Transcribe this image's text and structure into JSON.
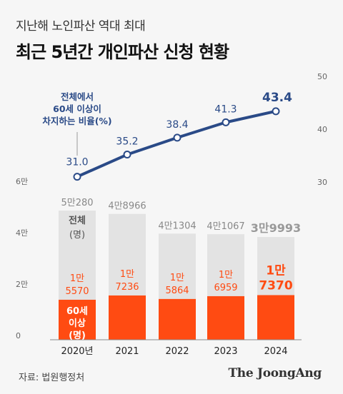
{
  "header": {
    "subtitle": "지난해 노인파산 역대 최대",
    "title": "최근 5년간 개인파산 신청 현황"
  },
  "source": "자료: 법원행정처",
  "brand": "The JoongAng",
  "line_annotation": [
    "전체에서",
    "60세 이상이",
    "차지하는 비율(%)"
  ],
  "total_box_label": [
    "전체",
    "(명)"
  ],
  "senior_box_label": [
    "60세",
    "이상",
    "(명)"
  ],
  "colors": {
    "total_bar": "#e3e3e3",
    "senior_bar": "#ff4b12",
    "line": "#2a4a87",
    "background": "#f6f6f6"
  },
  "chart_data": {
    "type": "bar",
    "categories": [
      "2020년",
      "2021",
      "2022",
      "2023",
      "2024"
    ],
    "series": [
      {
        "name": "전체",
        "values": [
          50280,
          48966,
          41304,
          41067,
          39993
        ],
        "labels": [
          "5만280",
          "4만8966",
          "4만1304",
          "4만1067",
          "3만9993"
        ]
      },
      {
        "name": "60세 이상",
        "values": [
          15570,
          17236,
          15864,
          16959,
          17370
        ],
        "labels": [
          [
            "1만",
            "5570"
          ],
          [
            "1만",
            "7236"
          ],
          [
            "1만",
            "5864"
          ],
          [
            "1만",
            "6959"
          ],
          [
            "1만",
            "7370"
          ]
        ]
      }
    ],
    "line_series": {
      "name": "전체에서 60세 이상이 차지하는 비율(%)",
      "values": [
        31.0,
        35.2,
        38.4,
        41.3,
        43.4
      ],
      "labels": [
        "31.0",
        "35.2",
        "38.4",
        "41.3",
        "43.4"
      ]
    },
    "left_axis": {
      "ticks": [
        0,
        20000,
        40000,
        60000
      ],
      "tick_labels": [
        "0",
        "2만",
        "4만",
        "6만"
      ],
      "ylim": [
        0,
        60000
      ]
    },
    "right_axis": {
      "ticks": [
        30,
        40,
        50
      ],
      "tick_labels": [
        "30",
        "40",
        "50"
      ],
      "ylim": [
        30,
        50
      ]
    },
    "grid": false,
    "legend": "none"
  }
}
